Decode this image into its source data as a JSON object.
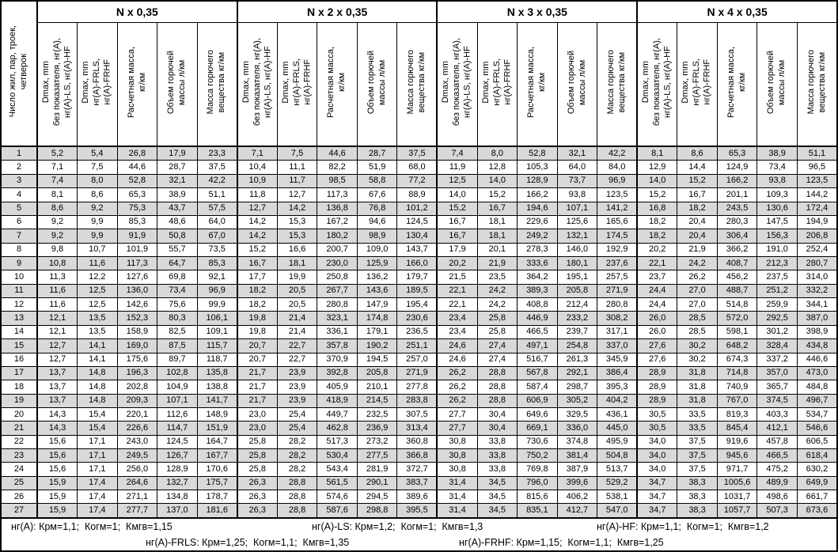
{
  "table": {
    "corner_header": "Число жил, пар, троек,\nчетверок",
    "groups": [
      {
        "title": "N x 0,35"
      },
      {
        "title": "N x 2 x 0,35"
      },
      {
        "title": "N x 3 x 0,35"
      },
      {
        "title": "N x 4 x 0,35"
      }
    ],
    "subheaders": [
      "Dmax, mm\nбез показателя, нг(А),\nнг(А)-LS, нг(А)-HF",
      "Dmax, mm\nнг(А)-FRLS,\nнг(А)-FRHF",
      "Расчетная масса,\nкг/км",
      "Объем горючей\nмассы л/км",
      "Масса горючего\nвещества кг/км"
    ],
    "rows": [
      {
        "n": "1",
        "cells": [
          "5,2",
          "5,4",
          "26,8",
          "17,9",
          "23,3",
          "7,1",
          "7,5",
          "44,6",
          "28,7",
          "37,5",
          "7,4",
          "8,0",
          "52,8",
          "32,1",
          "42,2",
          "8,1",
          "8,6",
          "65,3",
          "38,9",
          "51,1"
        ]
      },
      {
        "n": "2",
        "cells": [
          "7,1",
          "7,5",
          "44,6",
          "28,7",
          "37,5",
          "10,4",
          "11,1",
          "82,2",
          "51,9",
          "68,0",
          "11,9",
          "12,8",
          "105,3",
          "64,0",
          "84,0",
          "12,9",
          "14,4",
          "124,9",
          "73,4",
          "96,5"
        ]
      },
      {
        "n": "3",
        "cells": [
          "7,4",
          "8,0",
          "52,8",
          "32,1",
          "42,2",
          "10,9",
          "11,7",
          "98,5",
          "58,8",
          "77,2",
          "12,5",
          "14,0",
          "128,9",
          "73,7",
          "96,9",
          "14,0",
          "15,2",
          "166,2",
          "93,8",
          "123,5"
        ]
      },
      {
        "n": "4",
        "cells": [
          "8,1",
          "8,6",
          "65,3",
          "38,9",
          "51,1",
          "11,8",
          "12,7",
          "117,3",
          "67,6",
          "88,9",
          "14,0",
          "15,2",
          "166,2",
          "93,8",
          "123,5",
          "15,2",
          "16,7",
          "201,1",
          "109,3",
          "144,2"
        ]
      },
      {
        "n": "5",
        "cells": [
          "8,6",
          "9,2",
          "75,3",
          "43,7",
          "57,5",
          "12,7",
          "14,2",
          "136,8",
          "76,8",
          "101,2",
          "15,2",
          "16,7",
          "194,6",
          "107,1",
          "141,2",
          "16,8",
          "18,2",
          "243,5",
          "130,6",
          "172,4"
        ]
      },
      {
        "n": "6",
        "cells": [
          "9,2",
          "9,9",
          "85,3",
          "48,6",
          "64,0",
          "14,2",
          "15,3",
          "167,2",
          "94,6",
          "124,5",
          "16,7",
          "18,1",
          "229,6",
          "125,6",
          "165,6",
          "18,2",
          "20,4",
          "280,3",
          "147,5",
          "194,9"
        ]
      },
      {
        "n": "7",
        "cells": [
          "9,2",
          "9,9",
          "91,9",
          "50,8",
          "67,0",
          "14,2",
          "15,3",
          "180,2",
          "98,9",
          "130,4",
          "16,7",
          "18,1",
          "249,2",
          "132,1",
          "174,5",
          "18,2",
          "20,4",
          "306,4",
          "156,3",
          "206,8"
        ]
      },
      {
        "n": "8",
        "cells": [
          "9,8",
          "10,7",
          "101,9",
          "55,7",
          "73,5",
          "15,2",
          "16,6",
          "200,7",
          "109,0",
          "143,7",
          "17,9",
          "20,1",
          "278,3",
          "146,0",
          "192,9",
          "20,2",
          "21,9",
          "366,2",
          "191,0",
          "252,4"
        ]
      },
      {
        "n": "9",
        "cells": [
          "10,8",
          "11,6",
          "117,3",
          "64,7",
          "85,3",
          "16,7",
          "18,1",
          "230,0",
          "125,9",
          "166,0",
          "20,2",
          "21,9",
          "333,6",
          "180,1",
          "237,6",
          "22,1",
          "24,2",
          "408,7",
          "212,3",
          "280,7"
        ]
      },
      {
        "n": "10",
        "cells": [
          "11,3",
          "12,2",
          "127,6",
          "69,8",
          "92,1",
          "17,7",
          "19,9",
          "250,8",
          "136,2",
          "179,7",
          "21,5",
          "23,5",
          "364,2",
          "195,1",
          "257,5",
          "23,7",
          "26,2",
          "456,2",
          "237,5",
          "314,0"
        ]
      },
      {
        "n": "11",
        "cells": [
          "11,6",
          "12,5",
          "136,0",
          "73,4",
          "96,9",
          "18,2",
          "20,5",
          "267,7",
          "143,6",
          "189,5",
          "22,1",
          "24,2",
          "389,3",
          "205,8",
          "271,9",
          "24,4",
          "27,0",
          "488,7",
          "251,2",
          "332,2"
        ]
      },
      {
        "n": "12",
        "cells": [
          "11,6",
          "12,5",
          "142,6",
          "75,6",
          "99,9",
          "18,2",
          "20,5",
          "280,8",
          "147,9",
          "195,4",
          "22,1",
          "24,2",
          "408,8",
          "212,4",
          "280,8",
          "24,4",
          "27,0",
          "514,8",
          "259,9",
          "344,1"
        ]
      },
      {
        "n": "13",
        "cells": [
          "12,1",
          "13,5",
          "152,3",
          "80,3",
          "106,1",
          "19,8",
          "21,4",
          "323,1",
          "174,8",
          "230,6",
          "23,4",
          "25,8",
          "446,9",
          "233,2",
          "308,2",
          "26,0",
          "28,5",
          "572,0",
          "292,5",
          "387,0"
        ]
      },
      {
        "n": "14",
        "cells": [
          "12,1",
          "13,5",
          "158,9",
          "82,5",
          "109,1",
          "19,8",
          "21,4",
          "336,1",
          "179,1",
          "236,5",
          "23,4",
          "25,8",
          "466,5",
          "239,7",
          "317,1",
          "26,0",
          "28,5",
          "598,1",
          "301,2",
          "398,9"
        ]
      },
      {
        "n": "15",
        "cells": [
          "12,7",
          "14,1",
          "169,0",
          "87,5",
          "115,7",
          "20,7",
          "22,7",
          "357,8",
          "190,2",
          "251,1",
          "24,6",
          "27,4",
          "497,1",
          "254,8",
          "337,0",
          "27,6",
          "30,2",
          "648,2",
          "328,4",
          "434,8"
        ]
      },
      {
        "n": "16",
        "cells": [
          "12,7",
          "14,1",
          "175,6",
          "89,7",
          "118,7",
          "20,7",
          "22,7",
          "370,9",
          "194,5",
          "257,0",
          "24,6",
          "27,4",
          "516,7",
          "261,3",
          "345,9",
          "27,6",
          "30,2",
          "674,3",
          "337,2",
          "446,6"
        ]
      },
      {
        "n": "17",
        "cells": [
          "13,7",
          "14,8",
          "196,3",
          "102,8",
          "135,8",
          "21,7",
          "23,9",
          "392,8",
          "205,8",
          "271,9",
          "26,2",
          "28,8",
          "567,8",
          "292,1",
          "386,4",
          "28,9",
          "31,8",
          "714,8",
          "357,0",
          "473,0"
        ]
      },
      {
        "n": "18",
        "cells": [
          "13,7",
          "14,8",
          "202,8",
          "104,9",
          "138,8",
          "21,7",
          "23,9",
          "405,9",
          "210,1",
          "277,8",
          "26,2",
          "28,8",
          "587,4",
          "298,7",
          "395,3",
          "28,9",
          "31,8",
          "740,9",
          "365,7",
          "484,8"
        ]
      },
      {
        "n": "19",
        "cells": [
          "13,7",
          "14,8",
          "209,3",
          "107,1",
          "141,7",
          "21,7",
          "23,9",
          "418,9",
          "214,5",
          "283,8",
          "26,2",
          "28,8",
          "606,9",
          "305,2",
          "404,2",
          "28,9",
          "31,8",
          "767,0",
          "374,5",
          "496,7"
        ]
      },
      {
        "n": "20",
        "cells": [
          "14,3",
          "15,4",
          "220,1",
          "112,6",
          "148,9",
          "23,0",
          "25,4",
          "449,7",
          "232,5",
          "307,5",
          "27,7",
          "30,4",
          "649,6",
          "329,5",
          "436,1",
          "30,5",
          "33,5",
          "819,3",
          "403,3",
          "534,7"
        ]
      },
      {
        "n": "21",
        "cells": [
          "14,3",
          "15,4",
          "226,6",
          "114,7",
          "151,9",
          "23,0",
          "25,4",
          "462,8",
          "236,9",
          "313,4",
          "27,7",
          "30,4",
          "669,1",
          "336,0",
          "445,0",
          "30,5",
          "33,5",
          "845,4",
          "412,1",
          "546,6"
        ]
      },
      {
        "n": "22",
        "cells": [
          "15,6",
          "17,1",
          "243,0",
          "124,5",
          "164,7",
          "25,8",
          "28,2",
          "517,3",
          "273,2",
          "360,8",
          "30,8",
          "33,8",
          "730,6",
          "374,8",
          "495,9",
          "34,0",
          "37,5",
          "919,6",
          "457,8",
          "606,5"
        ]
      },
      {
        "n": "23",
        "cells": [
          "15,6",
          "17,1",
          "249,5",
          "126,7",
          "167,7",
          "25,8",
          "28,2",
          "530,4",
          "277,5",
          "366,8",
          "30,8",
          "33,8",
          "750,2",
          "381,4",
          "504,8",
          "34,0",
          "37,5",
          "945,6",
          "466,5",
          "618,4"
        ]
      },
      {
        "n": "24",
        "cells": [
          "15,6",
          "17,1",
          "256,0",
          "128,9",
          "170,6",
          "25,8",
          "28,2",
          "543,4",
          "281,9",
          "372,7",
          "30,8",
          "33,8",
          "769,8",
          "387,9",
          "513,7",
          "34,0",
          "37,5",
          "971,7",
          "475,2",
          "630,2"
        ]
      },
      {
        "n": "25",
        "cells": [
          "15,9",
          "17,4",
          "264,6",
          "132,7",
          "175,7",
          "26,3",
          "28,8",
          "561,5",
          "290,1",
          "383,7",
          "31,4",
          "34,5",
          "796,0",
          "399,6",
          "529,2",
          "34,7",
          "38,3",
          "1005,6",
          "489,9",
          "649,9"
        ]
      },
      {
        "n": "26",
        "cells": [
          "15,9",
          "17,4",
          "271,1",
          "134,8",
          "178,7",
          "26,3",
          "28,8",
          "574,6",
          "294,5",
          "389,6",
          "31,4",
          "34,5",
          "815,6",
          "406,2",
          "538,1",
          "34,7",
          "38,3",
          "1031,7",
          "498,6",
          "661,7"
        ]
      },
      {
        "n": "27",
        "cells": [
          "15,9",
          "17,4",
          "277,7",
          "137,0",
          "181,6",
          "26,3",
          "28,8",
          "587,6",
          "298,8",
          "395,5",
          "31,4",
          "34,5",
          "835,1",
          "412,7",
          "547,0",
          "34,7",
          "38,3",
          "1057,7",
          "507,3",
          "673,6"
        ]
      }
    ],
    "footnotes": {
      "line1": [
        "нг(А): Крм=1,1;  Когм=1;  Кмгв=1,15",
        "нг(А)-LS: Крм=1,2;  Когм=1;  Кмгв=1,3",
        "нг(А)-HF: Крм=1,1;  Когм=1;  Кмгв=1,2"
      ],
      "line2": [
        "нг(А)-FRLS: Крм=1,25;  Когм=1,1;  Кмгв=1,35",
        "нг(А)-FRHF: Крм=1,15;  Когм=1,1;  Кмгв=1,25"
      ]
    },
    "colors": {
      "row_alt": "#d9d9d9",
      "border": "#000000",
      "background": "#ffffff"
    }
  }
}
